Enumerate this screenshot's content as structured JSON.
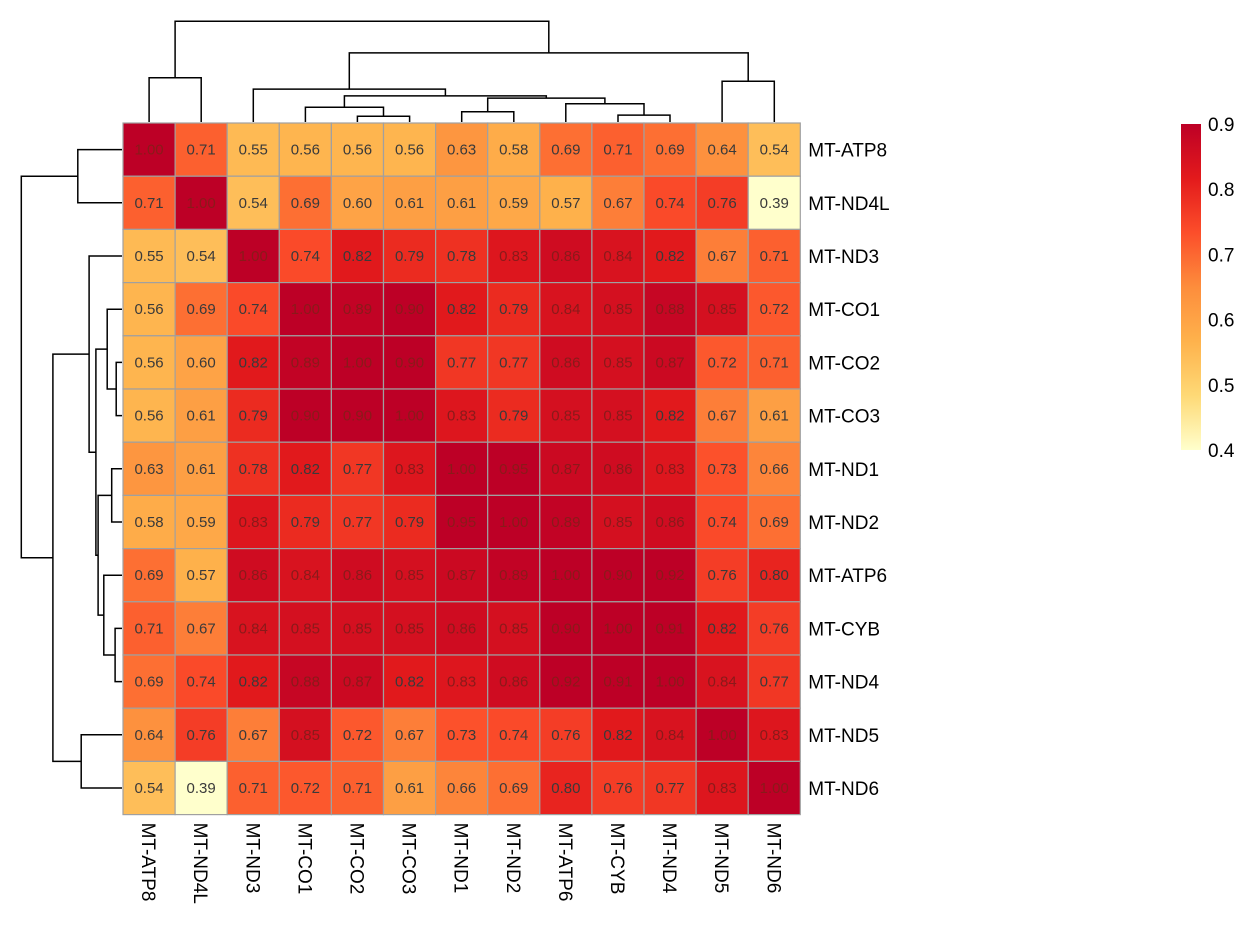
{
  "chart_data": {
    "type": "heatmap",
    "title": "",
    "xlabel": "",
    "ylabel": "",
    "rows": [
      "MT-ATP8",
      "MT-ND4L",
      "MT-ND3",
      "MT-CO1",
      "MT-CO2",
      "MT-CO3",
      "MT-ND1",
      "MT-ND2",
      "MT-ATP6",
      "MT-CYB",
      "MT-ND4",
      "MT-ND5",
      "MT-ND6"
    ],
    "columns": [
      "MT-ATP8",
      "MT-ND4L",
      "MT-ND3",
      "MT-CO1",
      "MT-CO2",
      "MT-CO3",
      "MT-ND1",
      "MT-ND2",
      "MT-ATP6",
      "MT-CYB",
      "MT-ND4",
      "MT-ND5",
      "MT-ND6"
    ],
    "values": [
      [
        1.0,
        0.71,
        0.55,
        0.56,
        0.56,
        0.56,
        0.63,
        0.58,
        0.69,
        0.71,
        0.69,
        0.64,
        0.54
      ],
      [
        0.71,
        1.0,
        0.54,
        0.69,
        0.6,
        0.61,
        0.61,
        0.59,
        0.57,
        0.67,
        0.74,
        0.76,
        0.39
      ],
      [
        0.55,
        0.54,
        1.0,
        0.74,
        0.82,
        0.79,
        0.78,
        0.83,
        0.86,
        0.84,
        0.82,
        0.67,
        0.71
      ],
      [
        0.56,
        0.69,
        0.74,
        1.0,
        0.89,
        0.9,
        0.82,
        0.79,
        0.84,
        0.85,
        0.88,
        0.85,
        0.72
      ],
      [
        0.56,
        0.6,
        0.82,
        0.89,
        1.0,
        0.9,
        0.77,
        0.77,
        0.86,
        0.85,
        0.87,
        0.72,
        0.71
      ],
      [
        0.56,
        0.61,
        0.79,
        0.9,
        0.9,
        1.0,
        0.83,
        0.79,
        0.85,
        0.85,
        0.82,
        0.67,
        0.61
      ],
      [
        0.63,
        0.61,
        0.78,
        0.82,
        0.77,
        0.83,
        1.0,
        0.95,
        0.87,
        0.86,
        0.83,
        0.73,
        0.66
      ],
      [
        0.58,
        0.59,
        0.83,
        0.79,
        0.77,
        0.79,
        0.95,
        1.0,
        0.89,
        0.85,
        0.86,
        0.74,
        0.69
      ],
      [
        0.69,
        0.57,
        0.86,
        0.84,
        0.86,
        0.85,
        0.87,
        0.89,
        1.0,
        0.9,
        0.92,
        0.76,
        0.8
      ],
      [
        0.71,
        0.67,
        0.84,
        0.85,
        0.85,
        0.85,
        0.86,
        0.85,
        0.9,
        1.0,
        0.91,
        0.82,
        0.76
      ],
      [
        0.69,
        0.74,
        0.82,
        0.88,
        0.87,
        0.82,
        0.83,
        0.86,
        0.92,
        0.91,
        1.0,
        0.84,
        0.77
      ],
      [
        0.64,
        0.76,
        0.67,
        0.85,
        0.72,
        0.67,
        0.73,
        0.74,
        0.76,
        0.82,
        0.84,
        1.0,
        0.83
      ],
      [
        0.54,
        0.39,
        0.71,
        0.72,
        0.71,
        0.61,
        0.66,
        0.69,
        0.8,
        0.76,
        0.77,
        0.83,
        1.0
      ]
    ],
    "value_format": "0.00",
    "color_range": [
      0.4,
      0.9
    ],
    "colorscale": [
      "#FFFFCC",
      "#FED976",
      "#FEB24C",
      "#FD8D3C",
      "#FC4E2A",
      "#E31A1C",
      "#BD0026"
    ],
    "legend": {
      "ticks": [
        "0.9",
        "0.8",
        "0.7",
        "0.6",
        "0.5",
        "0.4"
      ],
      "tick_values": [
        0.9,
        0.8,
        0.7,
        0.6,
        0.5,
        0.4
      ],
      "placement": "right"
    },
    "cell_border_color": "#A0A0A0",
    "row_dendrogram": "left",
    "column_dendrogram": "top"
  }
}
